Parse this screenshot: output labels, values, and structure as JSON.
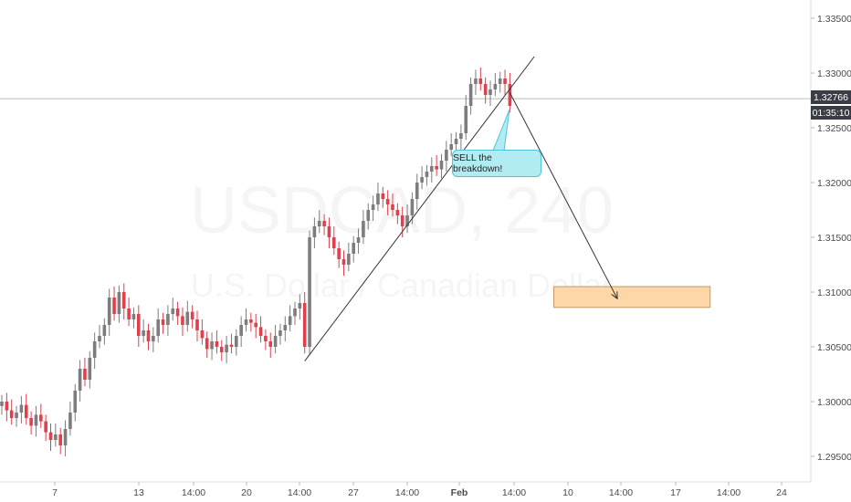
{
  "chart_data": {
    "type": "candlestick",
    "title": "",
    "watermark": {
      "symbol": "USDCAD, 240",
      "name": "U.S. Dollar / Canadian Dollar"
    },
    "xlabel": "",
    "ylabel": "",
    "ylim": [
      1.2925,
      1.3365
    ],
    "y_ticks": [
      "1.29500",
      "1.30000",
      "1.30500",
      "1.31000",
      "1.31500",
      "1.32000",
      "1.32500",
      "1.33000",
      "1.33500"
    ],
    "x_ticks": [
      "7",
      "13",
      "14:00",
      "20",
      "14:00",
      "27",
      "14:00",
      "Feb",
      "14:00",
      "10",
      "14:00",
      "17",
      "14:00",
      "24"
    ],
    "current_price": "1.32766",
    "countdown": "01:35:10",
    "colors": {
      "up": "#7d7d80",
      "down": "#e0404c",
      "price_line": "#bbbbbb",
      "target_fill": "#fdd7a8",
      "target_border": "#c49a63",
      "callout": "#b2ecf3"
    },
    "candles_close": [
      1.3,
      1.2992,
      1.2985,
      1.299,
      1.2997,
      1.2985,
      1.2978,
      1.2988,
      1.2982,
      1.2972,
      1.2965,
      1.297,
      1.296,
      1.2975,
      1.299,
      1.301,
      1.303,
      1.302,
      1.304,
      1.3055,
      1.306,
      1.307,
      1.3095,
      1.308,
      1.31,
      1.3085,
      1.3075,
      1.308,
      1.306,
      1.3065,
      1.3055,
      1.306,
      1.3075,
      1.307,
      1.308,
      1.3085,
      1.3078,
      1.307,
      1.3082,
      1.3075,
      1.3065,
      1.3058,
      1.3048,
      1.3055,
      1.305,
      1.3045,
      1.3052,
      1.305,
      1.306,
      1.307,
      1.3075,
      1.3072,
      1.3068,
      1.306,
      1.3055,
      1.305,
      1.306,
      1.3065,
      1.307,
      1.3078,
      1.3085,
      1.309,
      1.305,
      1.315,
      1.316,
      1.3165,
      1.316,
      1.315,
      1.314,
      1.313,
      1.3125,
      1.3135,
      1.3145,
      1.315,
      1.3165,
      1.3175,
      1.318,
      1.319,
      1.3185,
      1.318,
      1.3175,
      1.317,
      1.316,
      1.317,
      1.3185,
      1.32,
      1.3205,
      1.321,
      1.3215,
      1.3212,
      1.322,
      1.323,
      1.3235,
      1.324,
      1.3245,
      1.327,
      1.329,
      1.3295,
      1.329,
      1.328,
      1.3285,
      1.329,
      1.3295,
      1.329,
      1.327
    ],
    "trendline": {
      "from": {
        "candle": 62,
        "price": 1.3037
      },
      "to": {
        "candle": 109,
        "price": 1.3315
      }
    },
    "projection": {
      "from": {
        "candle": 104,
        "price": 1.3282
      },
      "to": {
        "candle": 126,
        "price": 1.3094
      }
    },
    "target_zone": {
      "from_candle": 113,
      "to_candle": 145,
      "top": 1.3105,
      "bottom": 1.3086
    },
    "annotation": "SELL the breakdown!"
  }
}
